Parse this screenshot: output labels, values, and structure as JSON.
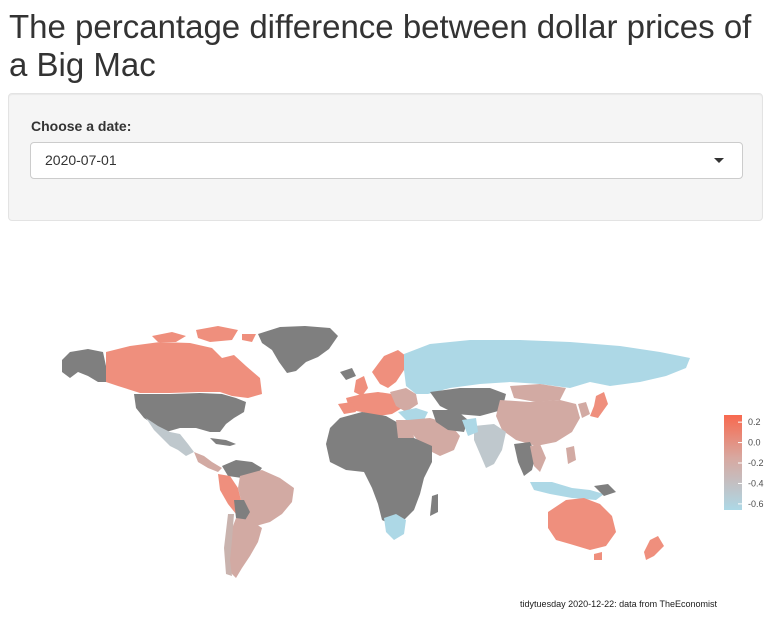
{
  "app": {
    "title": "The percantage difference between dollar prices of a Big Mac"
  },
  "controls": {
    "date_label": "Choose a date:",
    "date_value": "2020-07-01"
  },
  "map": {
    "legend": {
      "ticks": [
        "0.2",
        "0.0",
        "-0.2",
        "-0.4",
        "-0.6"
      ],
      "tick_values": [
        0.2,
        0.0,
        -0.2,
        -0.4,
        -0.6
      ],
      "range": [
        -0.66,
        0.27
      ],
      "color_high": "#f8694f",
      "color_mid": "#d8a8a0",
      "color_low": "#add8e6"
    },
    "no_data_color": "#7f7f7f",
    "caption": "tidytuesday 2020-12-22: data from TheEconomist"
  },
  "colors": {
    "overvalued": "#ef8f7d",
    "undervalued": "#add8e6",
    "neutral": "#d2aaa3"
  }
}
